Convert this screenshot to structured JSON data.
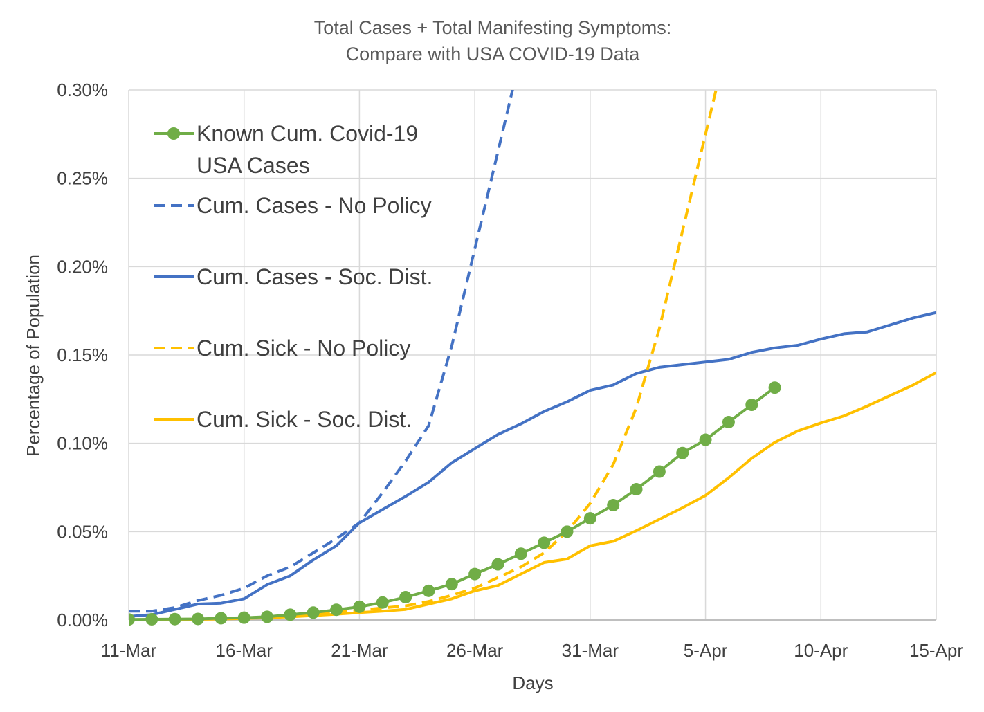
{
  "chart_data": {
    "type": "line",
    "title": [
      "Total Cases + Total Manifesting Symptoms:",
      "Compare with USA COVID-19 Data"
    ],
    "xlabel": "Days",
    "ylabel": "Percentage of Population",
    "x_ticks": [
      "11-Mar",
      "16-Mar",
      "21-Mar",
      "26-Mar",
      "31-Mar",
      "5-Apr",
      "10-Apr",
      "15-Apr"
    ],
    "y_ticks": [
      "0.00%",
      "0.05%",
      "0.10%",
      "0.15%",
      "0.20%",
      "0.25%",
      "0.30%"
    ],
    "xlim": [
      "11-Mar",
      "15-Apr"
    ],
    "ylim": [
      0,
      0.3
    ],
    "y_unit": "%",
    "grid": true,
    "legend_position": "top-left",
    "series": [
      {
        "name": "Known Cum. Covid-19 USA Cases",
        "color": "#70AD47",
        "style": "solid-markers",
        "x": [
          "11-Mar",
          "12-Mar",
          "13-Mar",
          "14-Mar",
          "15-Mar",
          "16-Mar",
          "17-Mar",
          "18-Mar",
          "19-Mar",
          "20-Mar",
          "21-Mar",
          "22-Mar",
          "23-Mar",
          "24-Mar",
          "25-Mar",
          "26-Mar",
          "27-Mar",
          "28-Mar",
          "29-Mar",
          "30-Mar",
          "31-Mar",
          "1-Apr",
          "2-Apr",
          "3-Apr",
          "4-Apr",
          "5-Apr",
          "6-Apr",
          "7-Apr",
          "8-Apr"
        ],
        "y": [
          0.0003,
          0.0004,
          0.0005,
          0.0006,
          0.001,
          0.0013,
          0.0018,
          0.003,
          0.0042,
          0.0058,
          0.0075,
          0.0099,
          0.0129,
          0.0165,
          0.0203,
          0.026,
          0.0315,
          0.0375,
          0.0437,
          0.05,
          0.0575,
          0.065,
          0.074,
          0.084,
          0.0945,
          0.102,
          0.112,
          0.1218,
          0.1315
        ]
      },
      {
        "name": "Cum. Cases - No Policy",
        "color": "#4472C4",
        "style": "dashed",
        "x": [
          "11-Mar",
          "12-Mar",
          "13-Mar",
          "14-Mar",
          "15-Mar",
          "16-Mar",
          "17-Mar",
          "18-Mar",
          "19-Mar",
          "20-Mar",
          "21-Mar",
          "22-Mar",
          "23-Mar",
          "24-Mar",
          "25-Mar",
          "26-Mar",
          "27-Mar",
          "28-Mar"
        ],
        "y": [
          0.005,
          0.005,
          0.007,
          0.011,
          0.014,
          0.018,
          0.025,
          0.03,
          0.038,
          0.046,
          0.055,
          0.072,
          0.09,
          0.11,
          0.155,
          0.21,
          0.265,
          0.32
        ]
      },
      {
        "name": "Cum. Cases - Soc. Dist.",
        "color": "#4472C4",
        "style": "solid",
        "x": [
          "11-Mar",
          "12-Mar",
          "13-Mar",
          "14-Mar",
          "15-Mar",
          "16-Mar",
          "17-Mar",
          "18-Mar",
          "19-Mar",
          "20-Mar",
          "21-Mar",
          "22-Mar",
          "23-Mar",
          "24-Mar",
          "25-Mar",
          "26-Mar",
          "27-Mar",
          "28-Mar",
          "29-Mar",
          "30-Mar",
          "31-Mar",
          "1-Apr",
          "2-Apr",
          "3-Apr",
          "4-Apr",
          "5-Apr",
          "6-Apr",
          "7-Apr",
          "8-Apr",
          "9-Apr",
          "10-Apr",
          "11-Apr",
          "12-Apr",
          "13-Apr",
          "14-Apr",
          "15-Apr"
        ],
        "y": [
          0.002,
          0.003,
          0.006,
          0.009,
          0.0095,
          0.012,
          0.02,
          0.025,
          0.034,
          0.042,
          0.055,
          0.0625,
          0.07,
          0.078,
          0.089,
          0.097,
          0.105,
          0.111,
          0.118,
          0.1235,
          0.13,
          0.133,
          0.1395,
          0.143,
          0.1445,
          0.146,
          0.1475,
          0.1515,
          0.154,
          0.1555,
          0.159,
          0.162,
          0.163,
          0.167,
          0.171,
          0.174
        ]
      },
      {
        "name": "Cum. Sick - No Policy",
        "color": "#FFC000",
        "style": "dashed",
        "x": [
          "11-Mar",
          "12-Mar",
          "13-Mar",
          "14-Mar",
          "15-Mar",
          "16-Mar",
          "17-Mar",
          "18-Mar",
          "19-Mar",
          "20-Mar",
          "21-Mar",
          "22-Mar",
          "23-Mar",
          "24-Mar",
          "25-Mar",
          "26-Mar",
          "27-Mar",
          "28-Mar",
          "29-Mar",
          "30-Mar",
          "31-Mar",
          "1-Apr",
          "2-Apr",
          "3-Apr",
          "4-Apr",
          "5-Apr",
          "6-Apr"
        ],
        "y": [
          0.0002,
          0.0002,
          0.0003,
          0.0005,
          0.0008,
          0.0012,
          0.0017,
          0.0025,
          0.0035,
          0.0045,
          0.0056,
          0.0068,
          0.008,
          0.0105,
          0.014,
          0.018,
          0.024,
          0.03,
          0.038,
          0.05,
          0.066,
          0.088,
          0.12,
          0.165,
          0.22,
          0.275,
          0.33
        ]
      },
      {
        "name": "Cum. Sick - Soc. Dist.",
        "color": "#FFC000",
        "style": "solid",
        "x": [
          "11-Mar",
          "12-Mar",
          "13-Mar",
          "14-Mar",
          "15-Mar",
          "16-Mar",
          "17-Mar",
          "18-Mar",
          "19-Mar",
          "20-Mar",
          "21-Mar",
          "22-Mar",
          "23-Mar",
          "24-Mar",
          "25-Mar",
          "26-Mar",
          "27-Mar",
          "28-Mar",
          "29-Mar",
          "30-Mar",
          "31-Mar",
          "1-Apr",
          "2-Apr",
          "3-Apr",
          "4-Apr",
          "5-Apr",
          "6-Apr",
          "7-Apr",
          "8-Apr",
          "9-Apr",
          "10-Apr",
          "11-Apr",
          "12-Apr",
          "13-Apr",
          "14-Apr",
          "15-Apr"
        ],
        "y": [
          0.0002,
          0.0002,
          0.0003,
          0.0004,
          0.0006,
          0.0009,
          0.0013,
          0.0018,
          0.0025,
          0.0033,
          0.0042,
          0.005,
          0.006,
          0.009,
          0.012,
          0.0165,
          0.0195,
          0.026,
          0.0325,
          0.0345,
          0.042,
          0.0445,
          0.0505,
          0.057,
          0.0635,
          0.0705,
          0.0805,
          0.0915,
          0.1005,
          0.107,
          0.1115,
          0.1155,
          0.121,
          0.127,
          0.133,
          0.14
        ]
      }
    ]
  }
}
